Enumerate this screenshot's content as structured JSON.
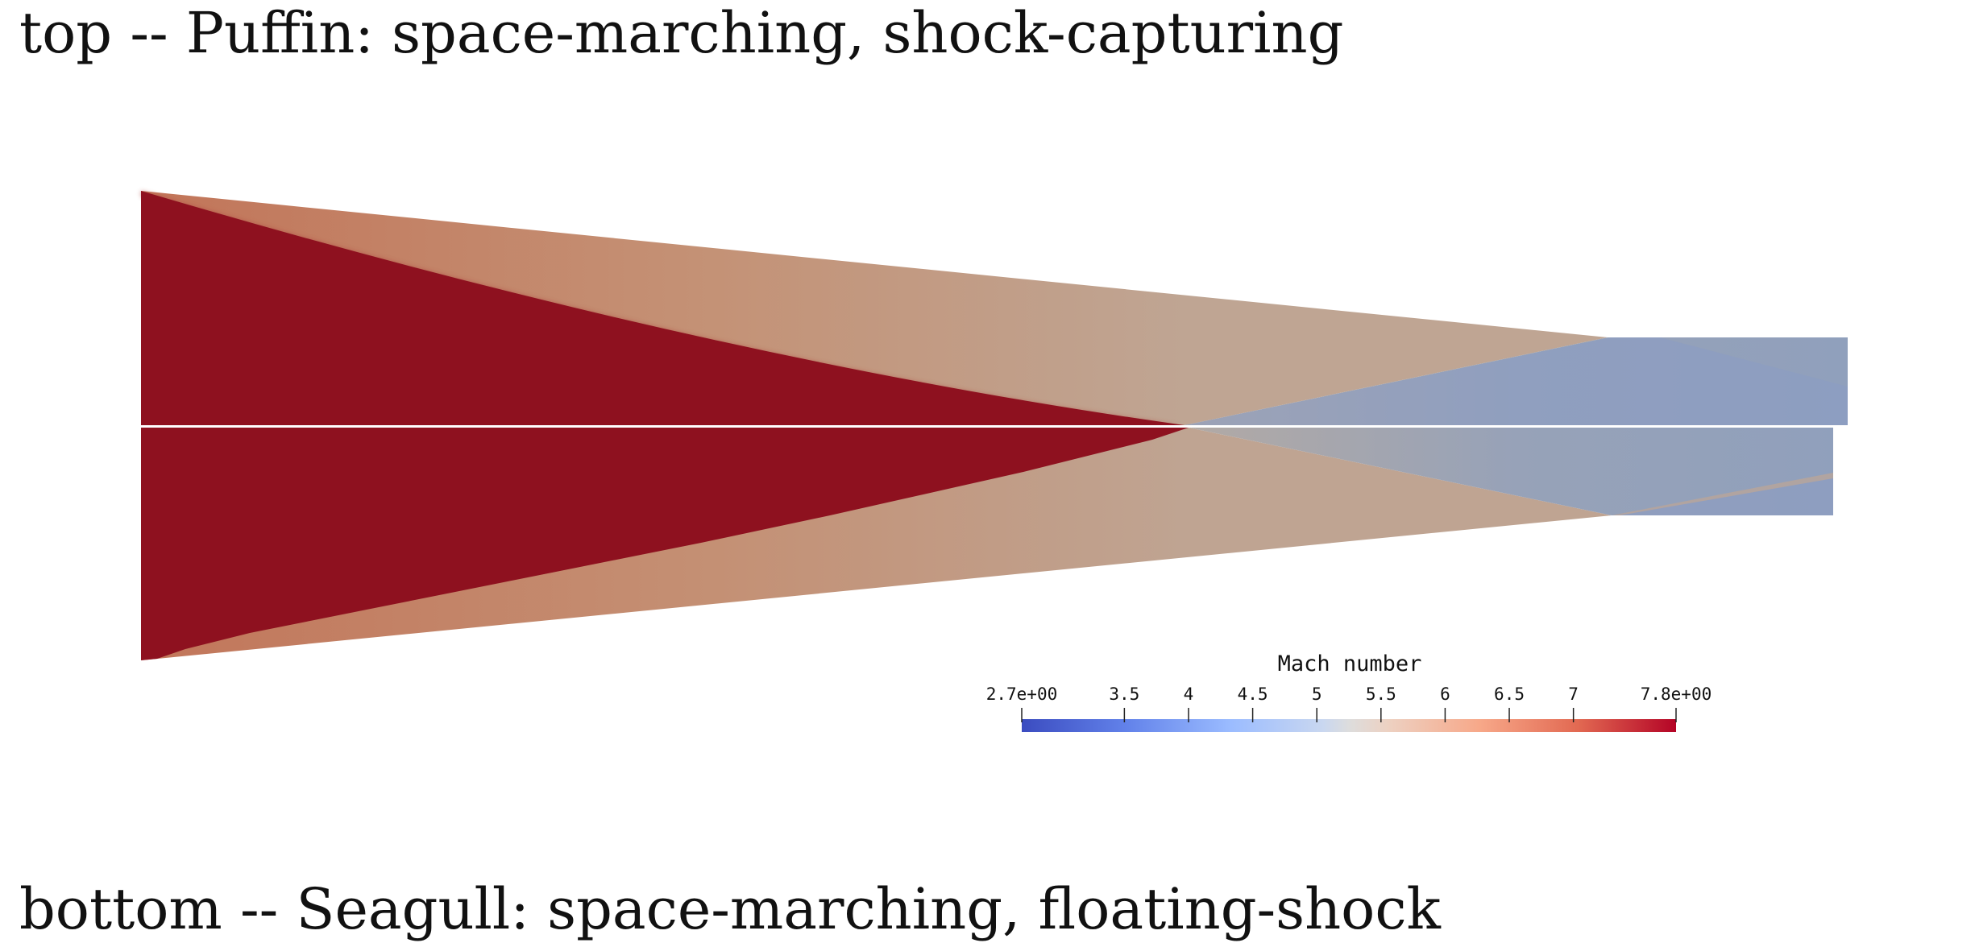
{
  "captions": {
    "top": "top -- Puffin: space-marching, shock-capturing",
    "bottom": "bottom -- Seagull: space-marching, floating-shock"
  },
  "colorbar": {
    "title": "Mach number",
    "range": [
      2.7,
      7.8
    ],
    "ticks": [
      {
        "value": 2.7,
        "label": "2.7e+00"
      },
      {
        "value": 3.5,
        "label": "3.5"
      },
      {
        "value": 4.0,
        "label": "4"
      },
      {
        "value": 4.5,
        "label": "4.5"
      },
      {
        "value": 5.0,
        "label": "5"
      },
      {
        "value": 5.5,
        "label": "5.5"
      },
      {
        "value": 6.0,
        "label": "6"
      },
      {
        "value": 6.5,
        "label": "6.5"
      },
      {
        "value": 7.0,
        "label": "7"
      },
      {
        "value": 7.8,
        "label": "7.8e+00"
      }
    ],
    "colormap": "cool-to-warm",
    "colors": {
      "low": "#3b4cc0",
      "mid": "#dddddd",
      "high": "#b40426"
    }
  },
  "field_colors": {
    "inflow": "#8e111f",
    "post_shock": "#c38a6f",
    "post_reflection": "#8fa0be"
  }
}
